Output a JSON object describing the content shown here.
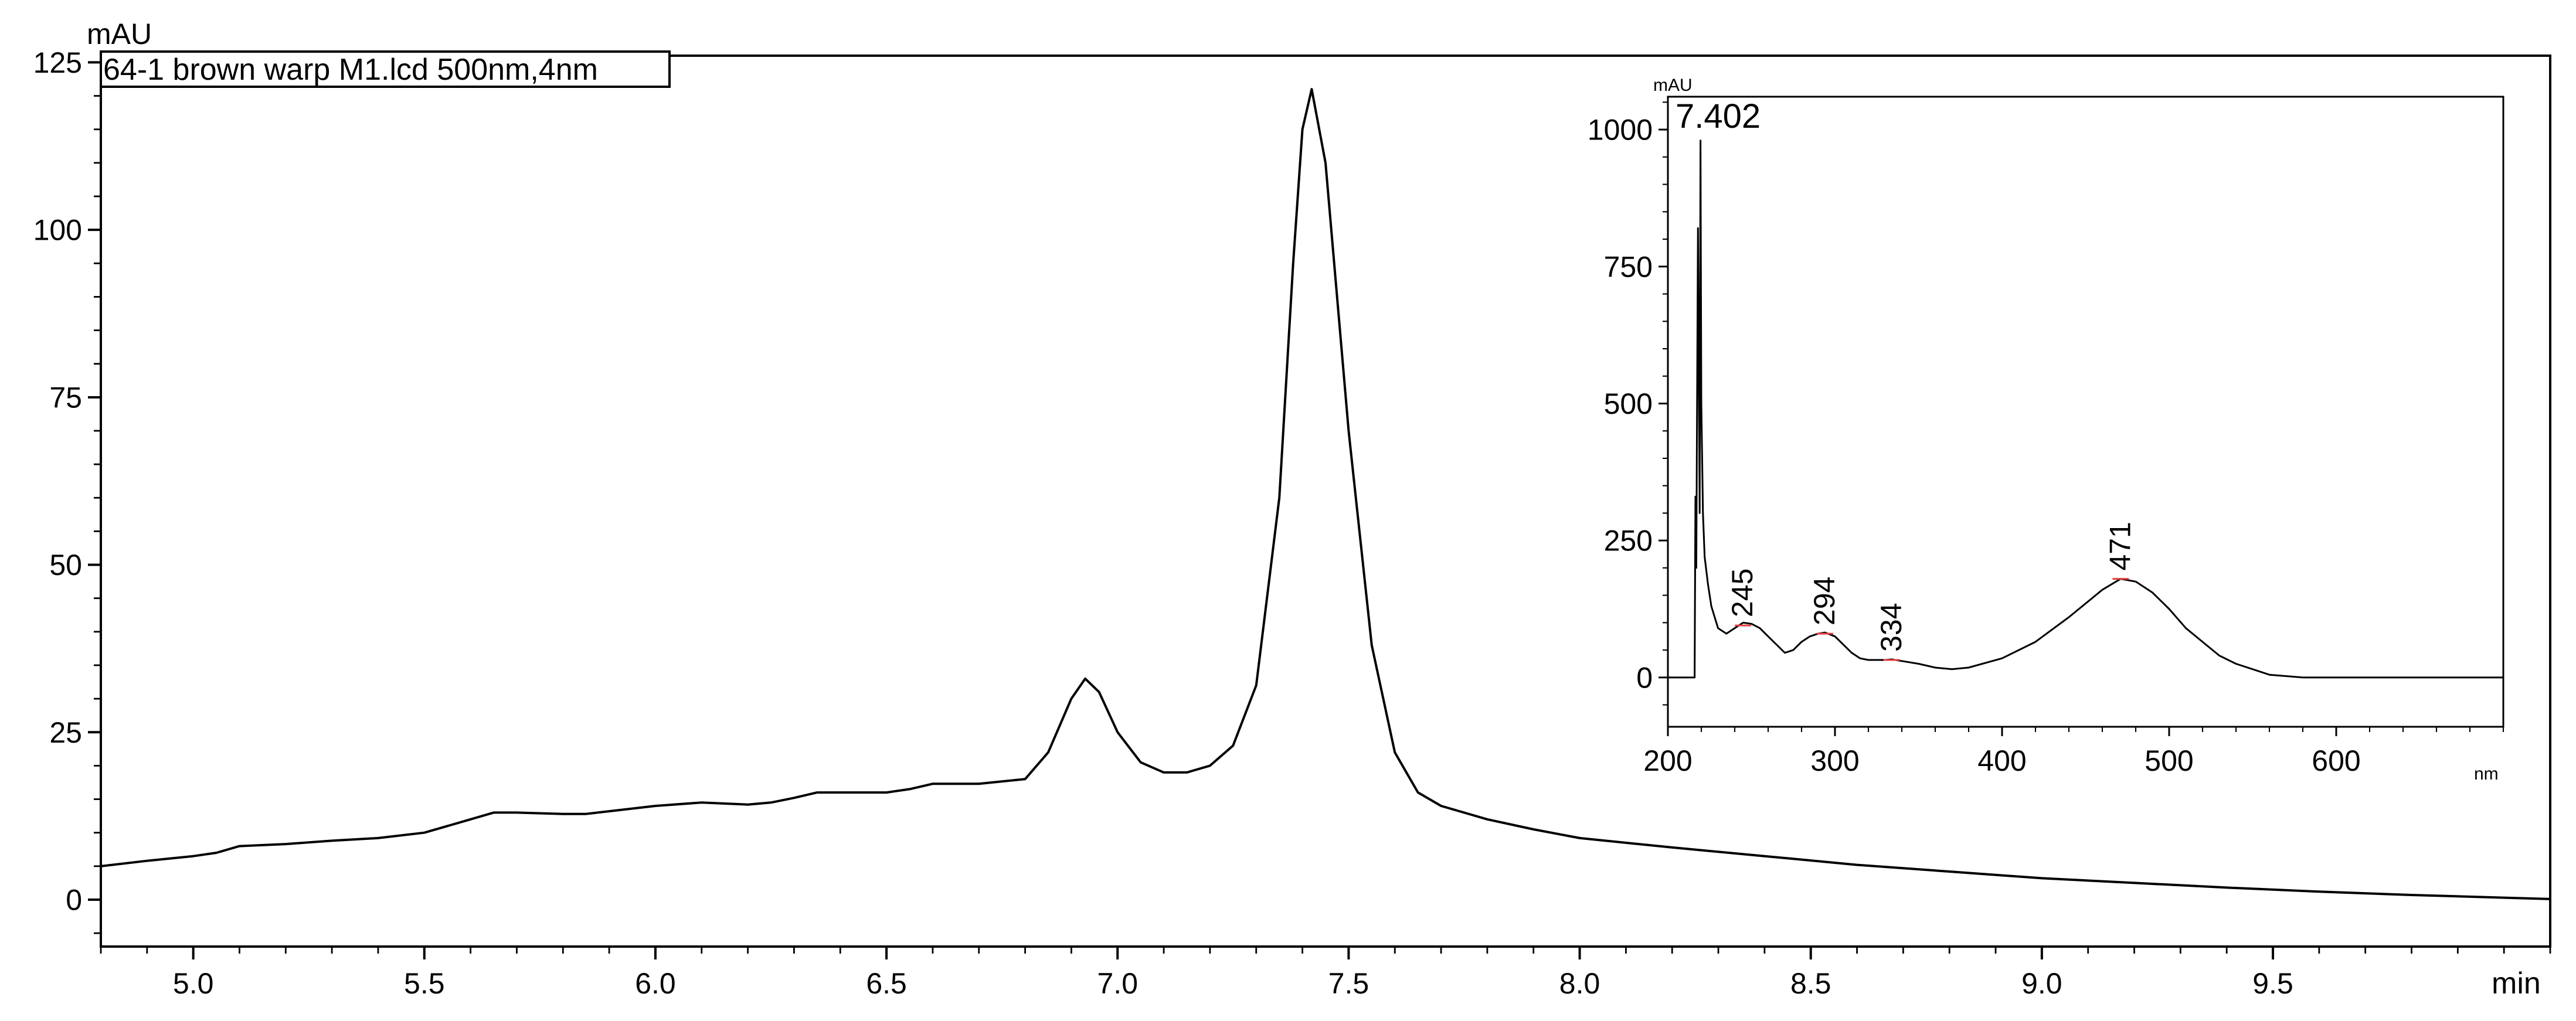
{
  "chart_data": [
    {
      "type": "line",
      "title": "64-1 brown warp M1.lcd 500nm,4nm",
      "ylabel": "mAU",
      "xlabel": "min",
      "xlim": [
        4.8,
        10.1
      ],
      "ylim": [
        -7,
        126
      ],
      "x_ticks": [
        "5.0",
        "5.5",
        "6.0",
        "6.5",
        "7.0",
        "7.5",
        "8.0",
        "8.5",
        "9.0",
        "9.5"
      ],
      "y_ticks": [
        "0",
        "25",
        "50",
        "75",
        "100",
        "125"
      ],
      "grid": false,
      "series": [
        {
          "x": [
            4.8,
            4.9,
            5.0,
            5.05,
            5.1,
            5.2,
            5.3,
            5.4,
            5.5,
            5.6,
            5.65,
            5.7,
            5.8,
            5.85,
            5.9,
            6.0,
            6.1,
            6.2,
            6.25,
            6.3,
            6.35,
            6.4,
            6.5,
            6.55,
            6.6,
            6.7,
            6.8,
            6.85,
            6.9,
            6.93,
            6.96,
            7.0,
            7.05,
            7.1,
            7.15,
            7.2,
            7.25,
            7.3,
            7.35,
            7.38,
            7.4,
            7.42,
            7.45,
            7.5,
            7.55,
            7.6,
            7.65,
            7.7,
            7.8,
            7.9,
            8.0,
            8.2,
            8.4,
            8.6,
            8.8,
            9.0,
            9.2,
            9.4,
            9.6,
            9.8,
            10.0,
            10.1
          ],
          "y": [
            5,
            5.8,
            6.5,
            7,
            8,
            8.3,
            8.8,
            9.2,
            10,
            12,
            13,
            13,
            12.8,
            12.8,
            13.2,
            14,
            14.5,
            14.2,
            14.5,
            15.2,
            16,
            16,
            16,
            16.5,
            17.3,
            17.3,
            18,
            22,
            30,
            33,
            31,
            25,
            20.5,
            19,
            19,
            20,
            23,
            32,
            60,
            95,
            115,
            121,
            110,
            70,
            38,
            22,
            16,
            14,
            12,
            10.5,
            9.2,
            7.8,
            6.5,
            5.2,
            4.2,
            3.2,
            2.5,
            1.8,
            1.2,
            0.7,
            0.3,
            0.1
          ]
        }
      ]
    },
    {
      "type": "line",
      "title": "7.402",
      "ylabel": "mAU",
      "xlabel": "nm",
      "xlim": [
        200,
        700
      ],
      "ylim": [
        -90,
        1060
      ],
      "x_ticks": [
        "200",
        "300",
        "400",
        "500",
        "600"
      ],
      "y_ticks": [
        "0",
        "250",
        "500",
        "750",
        "1000"
      ],
      "grid": false,
      "annotations": [
        {
          "x": 245,
          "y": 95,
          "label": "245"
        },
        {
          "x": 294,
          "y": 80,
          "label": "294"
        },
        {
          "x": 334,
          "y": 32,
          "label": "334"
        },
        {
          "x": 471,
          "y": 180,
          "label": "471"
        }
      ],
      "series": [
        {
          "x": [
            200,
            216,
            216.5,
            217,
            218,
            219,
            219.5,
            220,
            221,
            222,
            224,
            226,
            230,
            235,
            240,
            245,
            250,
            255,
            260,
            265,
            270,
            275,
            280,
            285,
            290,
            294,
            300,
            305,
            310,
            315,
            320,
            330,
            334,
            340,
            350,
            360,
            370,
            380,
            400,
            420,
            440,
            460,
            471,
            480,
            490,
            500,
            510,
            520,
            530,
            540,
            550,
            560,
            580,
            600,
            650,
            700
          ],
          "y": [
            0,
            0,
            330,
            200,
            820,
            300,
            980,
            500,
            300,
            220,
            170,
            130,
            90,
            80,
            90,
            100,
            98,
            90,
            75,
            60,
            45,
            50,
            65,
            75,
            80,
            82,
            75,
            60,
            45,
            35,
            32,
            32,
            33,
            30,
            25,
            18,
            15,
            18,
            35,
            65,
            110,
            160,
            180,
            175,
            155,
            125,
            90,
            65,
            40,
            25,
            15,
            5,
            0,
            0,
            0,
            0
          ]
        }
      ]
    }
  ]
}
